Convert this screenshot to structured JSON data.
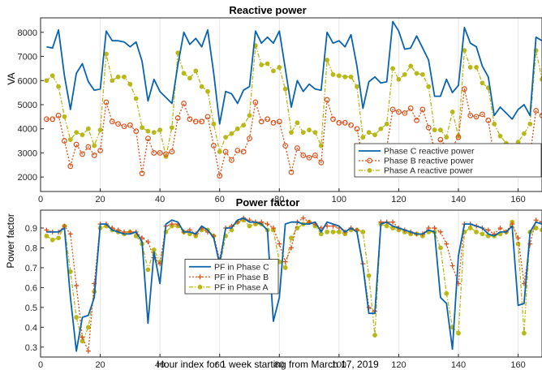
{
  "chart_data": [
    {
      "type": "line",
      "title": "Reactive power",
      "xlabel": "",
      "ylabel": "VA",
      "xlim": [
        0,
        168
      ],
      "ylim": [
        1400,
        8600
      ],
      "xticks": [
        0,
        20,
        40,
        60,
        80,
        100,
        120,
        140,
        160
      ],
      "yticks": [
        2000,
        3000,
        4000,
        5000,
        6000,
        7000,
        8000
      ],
      "grid": "vertical",
      "legend_position": "bottom-right",
      "series": [
        {
          "name": "Phase C reactive power",
          "color": "#0a64ad",
          "marker": "none",
          "x": [
            2,
            4,
            6,
            8,
            10,
            12,
            14,
            16,
            18,
            20,
            22,
            24,
            26,
            28,
            30,
            32,
            34,
            36,
            38,
            40,
            42,
            44,
            46,
            48,
            50,
            52,
            54,
            56,
            58,
            60,
            62,
            64,
            66,
            68,
            70,
            72,
            74,
            76,
            78,
            80,
            82,
            84,
            86,
            88,
            90,
            92,
            94,
            96,
            98,
            100,
            102,
            104,
            106,
            108,
            110,
            112,
            114,
            116,
            118,
            120,
            122,
            124,
            126,
            128,
            130,
            132,
            134,
            136,
            138,
            140,
            142,
            144,
            146,
            148,
            150,
            152,
            154,
            156,
            158,
            160,
            162,
            164,
            166,
            168
          ],
          "values": [
            7400,
            7350,
            8100,
            6200,
            4800,
            6300,
            6700,
            5950,
            5600,
            5650,
            8050,
            7650,
            7650,
            7600,
            7400,
            7600,
            6800,
            5150,
            6050,
            5550,
            5300,
            5050,
            6650,
            8000,
            7500,
            7750,
            7400,
            8100,
            6300,
            4200,
            5550,
            5450,
            5050,
            5600,
            5750,
            8050,
            7550,
            7800,
            7550,
            8050,
            6500,
            4900,
            6000,
            5550,
            5850,
            5650,
            5600,
            8000,
            7550,
            7650,
            7400,
            7900,
            6600,
            4850,
            5950,
            6150,
            5900,
            5950,
            8450,
            8050,
            7300,
            7350,
            7850,
            7350,
            6850,
            5350,
            5350,
            6050,
            5500,
            5800,
            8200,
            7550,
            7400,
            6600,
            6150,
            4550,
            4900,
            4650,
            4400,
            4800,
            5000,
            4550,
            7800,
            7650
          ]
        },
        {
          "name": "Phase B reactive power",
          "color": "#d9521b",
          "marker": "circle",
          "x": [
            2,
            4,
            6,
            8,
            10,
            12,
            14,
            16,
            18,
            20,
            22,
            24,
            26,
            28,
            30,
            32,
            34,
            36,
            38,
            40,
            42,
            44,
            46,
            48,
            50,
            52,
            54,
            56,
            58,
            60,
            62,
            64,
            66,
            68,
            70,
            72,
            74,
            76,
            78,
            80,
            82,
            84,
            86,
            88,
            90,
            92,
            94,
            96,
            98,
            100,
            102,
            104,
            106,
            108,
            110,
            112,
            114,
            116,
            118,
            120,
            122,
            124,
            126,
            128,
            130,
            132,
            134,
            136,
            138,
            140,
            142,
            144,
            146,
            148,
            150,
            152,
            154,
            156,
            158,
            160,
            162,
            164,
            166,
            168
          ],
          "values": [
            4400,
            4400,
            4550,
            3500,
            2450,
            3350,
            2950,
            3250,
            2900,
            3100,
            5100,
            4300,
            4200,
            4100,
            4150,
            3900,
            2150,
            3600,
            3000,
            3000,
            2950,
            3050,
            4450,
            5050,
            4400,
            4300,
            4300,
            4500,
            3300,
            2050,
            3050,
            2700,
            3100,
            3050,
            3600,
            5100,
            4300,
            4400,
            4250,
            4300,
            3300,
            2200,
            3200,
            2900,
            2800,
            2900,
            2600,
            5200,
            4400,
            4250,
            4250,
            4150,
            4000,
            2750,
            2800,
            3100,
            2650,
            3250,
            4800,
            4700,
            4650,
            4850,
            4350,
            4800,
            4050,
            3150,
            3550,
            3250,
            3250,
            3650,
            5650,
            4550,
            4500,
            4600,
            4350,
            2800,
            2800,
            2550,
            2250,
            2600,
            3000,
            2900,
            4750,
            4550
          ]
        },
        {
          "name": "Phase A reactive power",
          "color": "#b8b817",
          "marker": "dot",
          "x": [
            2,
            4,
            6,
            8,
            10,
            12,
            14,
            16,
            18,
            20,
            22,
            24,
            26,
            28,
            30,
            32,
            34,
            36,
            38,
            40,
            42,
            44,
            46,
            48,
            50,
            52,
            54,
            56,
            58,
            60,
            62,
            64,
            66,
            68,
            70,
            72,
            74,
            76,
            78,
            80,
            82,
            84,
            86,
            88,
            90,
            92,
            94,
            96,
            98,
            100,
            102,
            104,
            106,
            108,
            110,
            112,
            114,
            116,
            118,
            120,
            122,
            124,
            126,
            128,
            130,
            132,
            134,
            136,
            138,
            140,
            142,
            144,
            146,
            148,
            150,
            152,
            154,
            156,
            158,
            160,
            162,
            164,
            166,
            168
          ],
          "values": [
            6000,
            6200,
            5750,
            4500,
            3550,
            3850,
            3750,
            4000,
            3300,
            3950,
            7100,
            6000,
            6150,
            6150,
            5850,
            5250,
            4050,
            3900,
            3850,
            3950,
            2850,
            4050,
            7150,
            6300,
            6100,
            6400,
            5750,
            5550,
            4200,
            3050,
            3650,
            3800,
            4000,
            4150,
            4550,
            7450,
            6650,
            6700,
            6400,
            6550,
            5650,
            3850,
            4250,
            3850,
            3950,
            3850,
            3300,
            6850,
            6250,
            6200,
            6150,
            6150,
            5750,
            3650,
            3850,
            3750,
            4000,
            4200,
            6500,
            6050,
            6250,
            6600,
            6300,
            6250,
            5750,
            3950,
            3950,
            3650,
            4700,
            3700,
            7250,
            6550,
            6550,
            5900,
            5700,
            4200,
            3700,
            3400,
            3200,
            3450,
            3800,
            4200,
            7250,
            6050
          ]
        }
      ]
    },
    {
      "type": "line",
      "title": "Power factor",
      "xlabel": "Hour index for 1 week starting from March 17, 2019",
      "ylabel": "Power factor",
      "xlim": [
        0,
        168
      ],
      "ylim": [
        0.25,
        0.99
      ],
      "xticks": [
        0,
        20,
        40,
        60,
        80,
        100,
        120,
        140,
        160
      ],
      "yticks": [
        0.3,
        0.4,
        0.5,
        0.6,
        0.7,
        0.8,
        0.9
      ],
      "grid": "vertical",
      "legend_position": "bottom-left",
      "series": [
        {
          "name": "PF in Phase C",
          "color": "#0a64ad",
          "marker": "none",
          "x": [
            2,
            4,
            6,
            8,
            10,
            12,
            14,
            16,
            18,
            20,
            22,
            24,
            26,
            28,
            30,
            32,
            34,
            36,
            38,
            40,
            42,
            44,
            46,
            48,
            50,
            52,
            54,
            56,
            58,
            60,
            62,
            64,
            66,
            68,
            70,
            72,
            74,
            76,
            78,
            80,
            82,
            84,
            86,
            88,
            90,
            92,
            94,
            96,
            98,
            100,
            102,
            104,
            106,
            108,
            110,
            112,
            114,
            116,
            118,
            120,
            122,
            124,
            126,
            128,
            130,
            132,
            134,
            136,
            138,
            140,
            142,
            144,
            146,
            148,
            150,
            152,
            154,
            156,
            158,
            160,
            162,
            164,
            166,
            168
          ],
          "values": [
            0.88,
            0.88,
            0.88,
            0.9,
            0.55,
            0.28,
            0.45,
            0.46,
            0.55,
            0.92,
            0.92,
            0.89,
            0.88,
            0.87,
            0.87,
            0.88,
            0.83,
            0.42,
            0.78,
            0.62,
            0.92,
            0.94,
            0.93,
            0.88,
            0.88,
            0.87,
            0.91,
            0.89,
            0.85,
            0.72,
            0.9,
            0.9,
            0.94,
            0.95,
            0.93,
            0.93,
            0.92,
            0.89,
            0.43,
            0.55,
            0.92,
            0.93,
            0.93,
            0.92,
            0.92,
            0.93,
            0.88,
            0.93,
            0.92,
            0.91,
            0.88,
            0.9,
            0.88,
            0.71,
            0.47,
            0.47,
            0.92,
            0.93,
            0.91,
            0.9,
            0.89,
            0.88,
            0.87,
            0.87,
            0.89,
            0.88,
            0.55,
            0.52,
            0.29,
            0.76,
            0.92,
            0.92,
            0.91,
            0.9,
            0.87,
            0.86,
            0.88,
            0.88,
            0.91,
            0.51,
            0.52,
            0.88,
            0.93,
            0.92
          ]
        },
        {
          "name": "PF in Phase B",
          "color": "#d9521b",
          "marker": "plus",
          "x": [
            2,
            4,
            6,
            8,
            10,
            12,
            14,
            16,
            18,
            20,
            22,
            24,
            26,
            28,
            30,
            32,
            34,
            36,
            38,
            40,
            42,
            44,
            46,
            48,
            50,
            52,
            54,
            56,
            58,
            60,
            62,
            64,
            66,
            68,
            70,
            72,
            74,
            76,
            78,
            80,
            82,
            84,
            86,
            88,
            90,
            92,
            94,
            96,
            98,
            100,
            102,
            104,
            106,
            108,
            110,
            112,
            114,
            116,
            118,
            120,
            122,
            124,
            126,
            128,
            130,
            132,
            134,
            136,
            138,
            140,
            142,
            144,
            146,
            148,
            150,
            152,
            154,
            156,
            158,
            160,
            162,
            164,
            166,
            168
          ],
          "values": [
            0.89,
            0.88,
            0.88,
            0.91,
            0.87,
            0.61,
            0.35,
            0.28,
            0.62,
            0.92,
            0.92,
            0.9,
            0.89,
            0.88,
            0.88,
            0.88,
            0.85,
            0.83,
            0.75,
            0.72,
            0.91,
            0.92,
            0.92,
            0.88,
            0.89,
            0.87,
            0.9,
            0.88,
            0.86,
            0.74,
            0.9,
            0.91,
            0.93,
            0.95,
            0.94,
            0.93,
            0.93,
            0.92,
            0.9,
            0.82,
            0.73,
            0.8,
            0.93,
            0.95,
            0.93,
            0.92,
            0.9,
            0.91,
            0.91,
            0.9,
            0.88,
            0.9,
            0.89,
            0.72,
            0.5,
            0.48,
            0.93,
            0.93,
            0.93,
            0.9,
            0.89,
            0.88,
            0.87,
            0.87,
            0.9,
            0.9,
            0.88,
            0.82,
            0.71,
            0.62,
            0.92,
            0.92,
            0.91,
            0.9,
            0.89,
            0.87,
            0.9,
            0.88,
            0.92,
            0.85,
            0.62,
            0.82,
            0.94,
            0.93
          ]
        },
        {
          "name": "PF in Phase A",
          "color": "#b8b817",
          "marker": "dot",
          "x": [
            2,
            4,
            6,
            8,
            10,
            12,
            14,
            16,
            18,
            20,
            22,
            24,
            26,
            28,
            30,
            32,
            34,
            36,
            38,
            40,
            42,
            44,
            46,
            48,
            50,
            52,
            54,
            56,
            58,
            60,
            62,
            64,
            66,
            68,
            70,
            72,
            74,
            76,
            78,
            80,
            82,
            84,
            86,
            88,
            90,
            92,
            94,
            96,
            98,
            100,
            102,
            104,
            106,
            108,
            110,
            112,
            114,
            116,
            118,
            120,
            122,
            124,
            126,
            128,
            130,
            132,
            134,
            136,
            138,
            140,
            142,
            144,
            146,
            148,
            150,
            152,
            154,
            156,
            158,
            160,
            162,
            164,
            166,
            168
          ],
          "values": [
            0.86,
            0.84,
            0.85,
            0.91,
            0.68,
            0.45,
            0.33,
            0.4,
            0.58,
            0.9,
            0.91,
            0.89,
            0.88,
            0.87,
            0.88,
            0.86,
            0.82,
            0.69,
            0.79,
            0.73,
            0.88,
            0.91,
            0.91,
            0.88,
            0.87,
            0.86,
            0.89,
            0.89,
            0.86,
            0.7,
            0.86,
            0.89,
            0.93,
            0.94,
            0.91,
            0.92,
            0.92,
            0.89,
            0.89,
            0.73,
            0.7,
            0.85,
            0.9,
            0.92,
            0.93,
            0.91,
            0.87,
            0.88,
            0.88,
            0.88,
            0.87,
            0.89,
            0.89,
            0.88,
            0.66,
            0.36,
            0.92,
            0.91,
            0.9,
            0.89,
            0.88,
            0.87,
            0.87,
            0.86,
            0.88,
            0.88,
            0.8,
            0.57,
            0.4,
            0.37,
            0.88,
            0.9,
            0.88,
            0.87,
            0.86,
            0.86,
            0.87,
            0.88,
            0.93,
            0.82,
            0.37,
            0.88,
            0.9,
            0.89
          ]
        }
      ]
    }
  ]
}
